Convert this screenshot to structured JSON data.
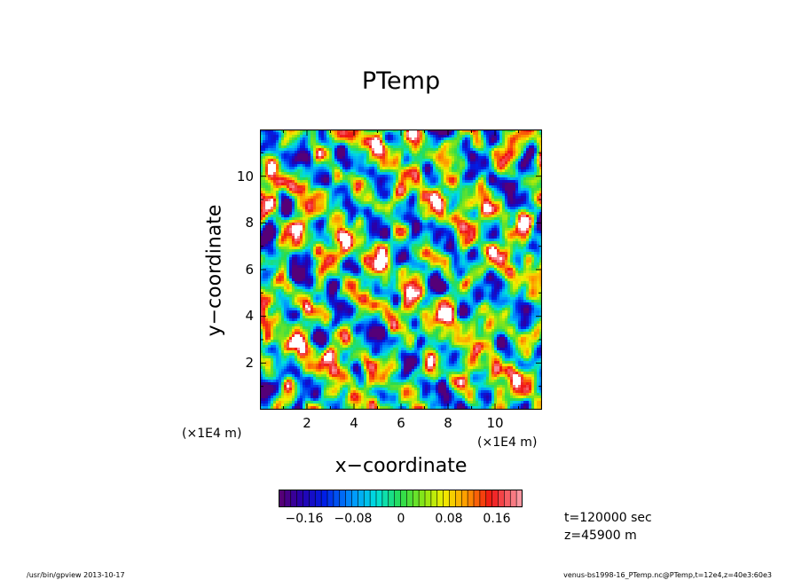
{
  "chart_data": {
    "type": "heatmap",
    "title": "PTemp",
    "xlabel": "x−coordinate",
    "ylabel": "y−coordinate",
    "x_unit": "(×1E4 m)",
    "y_unit": "(×1E4 m)",
    "xlim": [
      0,
      12
    ],
    "ylim": [
      0,
      12
    ],
    "x_ticks": [
      2,
      4,
      6,
      8,
      10
    ],
    "y_ticks": [
      2,
      4,
      6,
      8,
      10
    ],
    "x_tick_labels": [
      "2",
      "4",
      "6",
      "8",
      "10"
    ],
    "y_tick_labels": [
      "2",
      "4",
      "6",
      "8",
      "10"
    ],
    "colorbar": {
      "min": -0.2,
      "max": 0.2,
      "ticks": [
        -0.16,
        -0.08,
        0,
        0.08,
        0.16
      ],
      "tick_labels": [
        "−0.16",
        "−0.08",
        "0",
        "0.08",
        "0.16"
      ]
    },
    "info": [
      "t=120000 sec",
      "z=45900 m"
    ]
  },
  "footer": {
    "left": "/usr/bin/gpview   2013-10-17",
    "right": "venus-bs1998-16_PTemp.nc@PTemp,t=12e4,z=40e3:60e3"
  }
}
